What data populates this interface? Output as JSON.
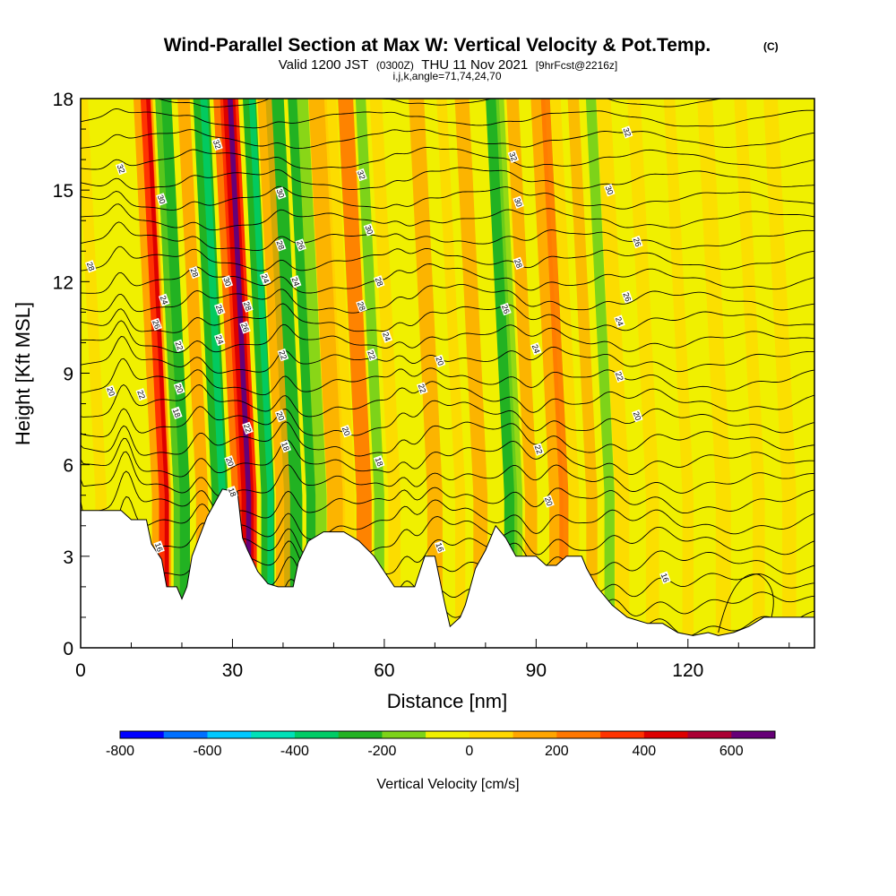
{
  "chart_data": {
    "type": "heatmap",
    "title": "Wind-Parallel Section at Max W: Vertical Velocity & Pot.Temp.",
    "title_mark": "(C)",
    "subtitle": {
      "prefix": "Valid 1200 JST",
      "utc": "(0300Z)",
      "date": "THU 11 Nov 2021",
      "forecast": "[9hrFcst@2216z]"
    },
    "section_info": "i,j,k,angle=71,74,24,70",
    "xlabel": "Distance [nm]",
    "ylabel": "Height [Kft MSL]",
    "xlim": [
      0,
      145
    ],
    "ylim": [
      0,
      18
    ],
    "x_ticks": [
      0,
      30,
      60,
      90,
      120
    ],
    "y_ticks": [
      0,
      3,
      6,
      9,
      12,
      15,
      18
    ],
    "colorbar": {
      "label": "Vertical Velocity [cm/s]",
      "boundaries": [
        -800,
        -700,
        -600,
        -500,
        -400,
        -300,
        -200,
        -100,
        0,
        100,
        200,
        300,
        400,
        500,
        600,
        700
      ],
      "tick_labels": [
        -800,
        -600,
        -400,
        -200,
        0,
        200,
        400,
        600
      ],
      "colors": [
        "#0000ff",
        "#0070ff",
        "#00c8ff",
        "#00e0b8",
        "#00cc66",
        "#22b222",
        "#7dd319",
        "#f0f000",
        "#ffd700",
        "#ffa500",
        "#ff7700",
        "#ff3300",
        "#dd0000",
        "#aa0033",
        "#660077"
      ]
    },
    "terrain_kft": [
      [
        0,
        4.5
      ],
      [
        8,
        4.5
      ],
      [
        10,
        4.2
      ],
      [
        13,
        4.2
      ],
      [
        14,
        3.4
      ],
      [
        16,
        2.9
      ],
      [
        17,
        2.0
      ],
      [
        19,
        2.0
      ],
      [
        20,
        1.6
      ],
      [
        21,
        2.0
      ],
      [
        22,
        3.0
      ],
      [
        25,
        4.3
      ],
      [
        28,
        5.2
      ],
      [
        31,
        5.1
      ],
      [
        32,
        3.6
      ],
      [
        33,
        3.2
      ],
      [
        35,
        2.5
      ],
      [
        37,
        2.1
      ],
      [
        39,
        2.0
      ],
      [
        42,
        2.0
      ],
      [
        43,
        2.8
      ],
      [
        45,
        3.5
      ],
      [
        48,
        3.8
      ],
      [
        52,
        3.8
      ],
      [
        55,
        3.5
      ],
      [
        58,
        3.0
      ],
      [
        60,
        2.5
      ],
      [
        62,
        2.0
      ],
      [
        66,
        2.0
      ],
      [
        68,
        3.0
      ],
      [
        70,
        3.0
      ],
      [
        72,
        1.4
      ],
      [
        73,
        0.7
      ],
      [
        75,
        1.0
      ],
      [
        76,
        1.4
      ],
      [
        78,
        2.6
      ],
      [
        80,
        3.2
      ],
      [
        82,
        4.0
      ],
      [
        84,
        3.6
      ],
      [
        86,
        3.0
      ],
      [
        90,
        3.0
      ],
      [
        92,
        2.7
      ],
      [
        94,
        2.7
      ],
      [
        96,
        3.0
      ],
      [
        99,
        3.0
      ],
      [
        100,
        2.6
      ],
      [
        102,
        2.0
      ],
      [
        105,
        1.4
      ],
      [
        108,
        1.0
      ],
      [
        112,
        0.8
      ],
      [
        115,
        0.8
      ],
      [
        118,
        0.5
      ],
      [
        121,
        0.4
      ],
      [
        124,
        0.5
      ],
      [
        126,
        0.4
      ],
      [
        129,
        0.5
      ],
      [
        132,
        0.7
      ],
      [
        135,
        1.0
      ],
      [
        145,
        1.0
      ]
    ],
    "theta_levels": [
      16,
      18,
      20,
      22,
      24,
      26,
      28,
      30,
      32
    ],
    "contour_labels": [
      {
        "text": "32",
        "x": 8,
        "y": 15.7
      },
      {
        "text": "30",
        "x": 16,
        "y": 14.7
      },
      {
        "text": "28",
        "x": 2,
        "y": 12.5
      },
      {
        "text": "26",
        "x": 15,
        "y": 10.6
      },
      {
        "text": "24",
        "x": 16.5,
        "y": 11.4
      },
      {
        "text": "22",
        "x": 19.5,
        "y": 9.9
      },
      {
        "text": "20",
        "x": 6,
        "y": 8.4
      },
      {
        "text": "22",
        "x": 12,
        "y": 8.3
      },
      {
        "text": "20",
        "x": 19.5,
        "y": 8.5
      },
      {
        "text": "18",
        "x": 19,
        "y": 7.7
      },
      {
        "text": "16",
        "x": 15.5,
        "y": 3.3
      },
      {
        "text": "32",
        "x": 27,
        "y": 16.5
      },
      {
        "text": "28",
        "x": 22.5,
        "y": 12.3
      },
      {
        "text": "30",
        "x": 29,
        "y": 12.0
      },
      {
        "text": "26",
        "x": 27.5,
        "y": 11.1
      },
      {
        "text": "24",
        "x": 27.5,
        "y": 10.1
      },
      {
        "text": "28",
        "x": 33,
        "y": 11.2
      },
      {
        "text": "26",
        "x": 32.5,
        "y": 10.5
      },
      {
        "text": "24",
        "x": 36.5,
        "y": 12.1
      },
      {
        "text": "22",
        "x": 33,
        "y": 7.2
      },
      {
        "text": "20",
        "x": 29.5,
        "y": 6.1
      },
      {
        "text": "18",
        "x": 30,
        "y": 5.1
      },
      {
        "text": "30",
        "x": 39.5,
        "y": 14.9
      },
      {
        "text": "28",
        "x": 39.5,
        "y": 13.2
      },
      {
        "text": "26",
        "x": 43.5,
        "y": 13.2
      },
      {
        "text": "24",
        "x": 42.5,
        "y": 12.0
      },
      {
        "text": "22",
        "x": 40,
        "y": 9.6
      },
      {
        "text": "20",
        "x": 39.5,
        "y": 7.6
      },
      {
        "text": "18",
        "x": 40.5,
        "y": 6.6
      },
      {
        "text": "32",
        "x": 55.5,
        "y": 15.5
      },
      {
        "text": "30",
        "x": 57,
        "y": 13.7
      },
      {
        "text": "28",
        "x": 59,
        "y": 12.0
      },
      {
        "text": "28",
        "x": 55.5,
        "y": 11.2
      },
      {
        "text": "24",
        "x": 60.5,
        "y": 10.2
      },
      {
        "text": "22",
        "x": 57.5,
        "y": 9.6
      },
      {
        "text": "20",
        "x": 52.5,
        "y": 7.1
      },
      {
        "text": "18",
        "x": 59,
        "y": 6.1
      },
      {
        "text": "22",
        "x": 67.5,
        "y": 8.5
      },
      {
        "text": "20",
        "x": 71,
        "y": 9.4
      },
      {
        "text": "16",
        "x": 71,
        "y": 3.3
      },
      {
        "text": "32",
        "x": 85.5,
        "y": 16.1
      },
      {
        "text": "30",
        "x": 86.5,
        "y": 14.6
      },
      {
        "text": "28",
        "x": 86.5,
        "y": 12.6
      },
      {
        "text": "26",
        "x": 84,
        "y": 11.1
      },
      {
        "text": "24",
        "x": 90,
        "y": 9.8
      },
      {
        "text": "22",
        "x": 90.5,
        "y": 6.5
      },
      {
        "text": "20",
        "x": 92.5,
        "y": 4.8
      },
      {
        "text": "32",
        "x": 108,
        "y": 16.9
      },
      {
        "text": "30",
        "x": 104.5,
        "y": 15.0
      },
      {
        "text": "26",
        "x": 110,
        "y": 13.3
      },
      {
        "text": "26",
        "x": 108,
        "y": 11.5
      },
      {
        "text": "24",
        "x": 106.5,
        "y": 10.7
      },
      {
        "text": "22",
        "x": 106.5,
        "y": 8.9
      },
      {
        "text": "20",
        "x": 110,
        "y": 7.6
      },
      {
        "text": "16",
        "x": 115.5,
        "y": 2.3
      }
    ]
  }
}
